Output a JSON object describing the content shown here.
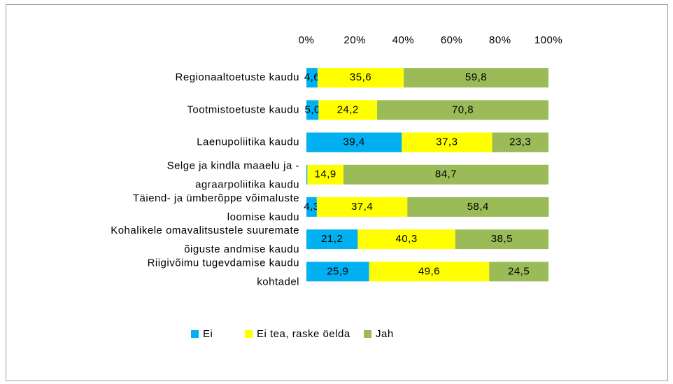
{
  "chart_data": {
    "type": "stacked_bar_horizontal",
    "categories": [
      "Regionaaltoetuste kaudu",
      "Tootmistoetuste kaudu",
      "Laenupoliitika kaudu",
      [
        "Selge ja kindla maaelu ja -",
        "agraarpoliitika kaudu"
      ],
      [
        "Täiend- ja ümberõppe võimaluste",
        "loomise kaudu"
      ],
      [
        "Kohalikele omavalitsustele suuremate",
        "õiguste andmise kaudu"
      ],
      [
        "Riigivõimu tugevdamise kaudu",
        "kohtadel"
      ]
    ],
    "series": [
      {
        "name": "Ei",
        "color": "#00b0f0",
        "values": [
          4.6,
          5.0,
          39.4,
          0.4,
          4.3,
          21.2,
          25.9
        ],
        "value_labels": [
          "4,6",
          "5,0",
          "39,4",
          null,
          "4,3",
          "21,2",
          "25,9"
        ]
      },
      {
        "name": "Ei tea, raske öelda",
        "color": "#ffff00",
        "values": [
          35.6,
          24.2,
          37.3,
          14.9,
          37.4,
          40.3,
          49.6
        ],
        "value_labels": [
          "35,6",
          "24,2",
          "37,3",
          "14,9",
          "37,4",
          "40,3",
          "49,6"
        ]
      },
      {
        "name": "Jah",
        "color": "#9bbb59",
        "values": [
          59.8,
          70.8,
          23.3,
          84.7,
          58.4,
          38.5,
          24.5
        ],
        "value_labels": [
          "59,8",
          "70,8",
          "23,3",
          "84,7",
          "58,4",
          "38,5",
          "24,5"
        ]
      }
    ],
    "xlim": [
      0,
      100
    ],
    "xticks": [
      {
        "value": 0,
        "label": "0%"
      },
      {
        "value": 20,
        "label": "20%"
      },
      {
        "value": 40,
        "label": "40%"
      },
      {
        "value": 60,
        "label": "60%"
      },
      {
        "value": 80,
        "label": "80%"
      },
      {
        "value": 100,
        "label": "100%"
      }
    ],
    "legend": "bottom"
  }
}
